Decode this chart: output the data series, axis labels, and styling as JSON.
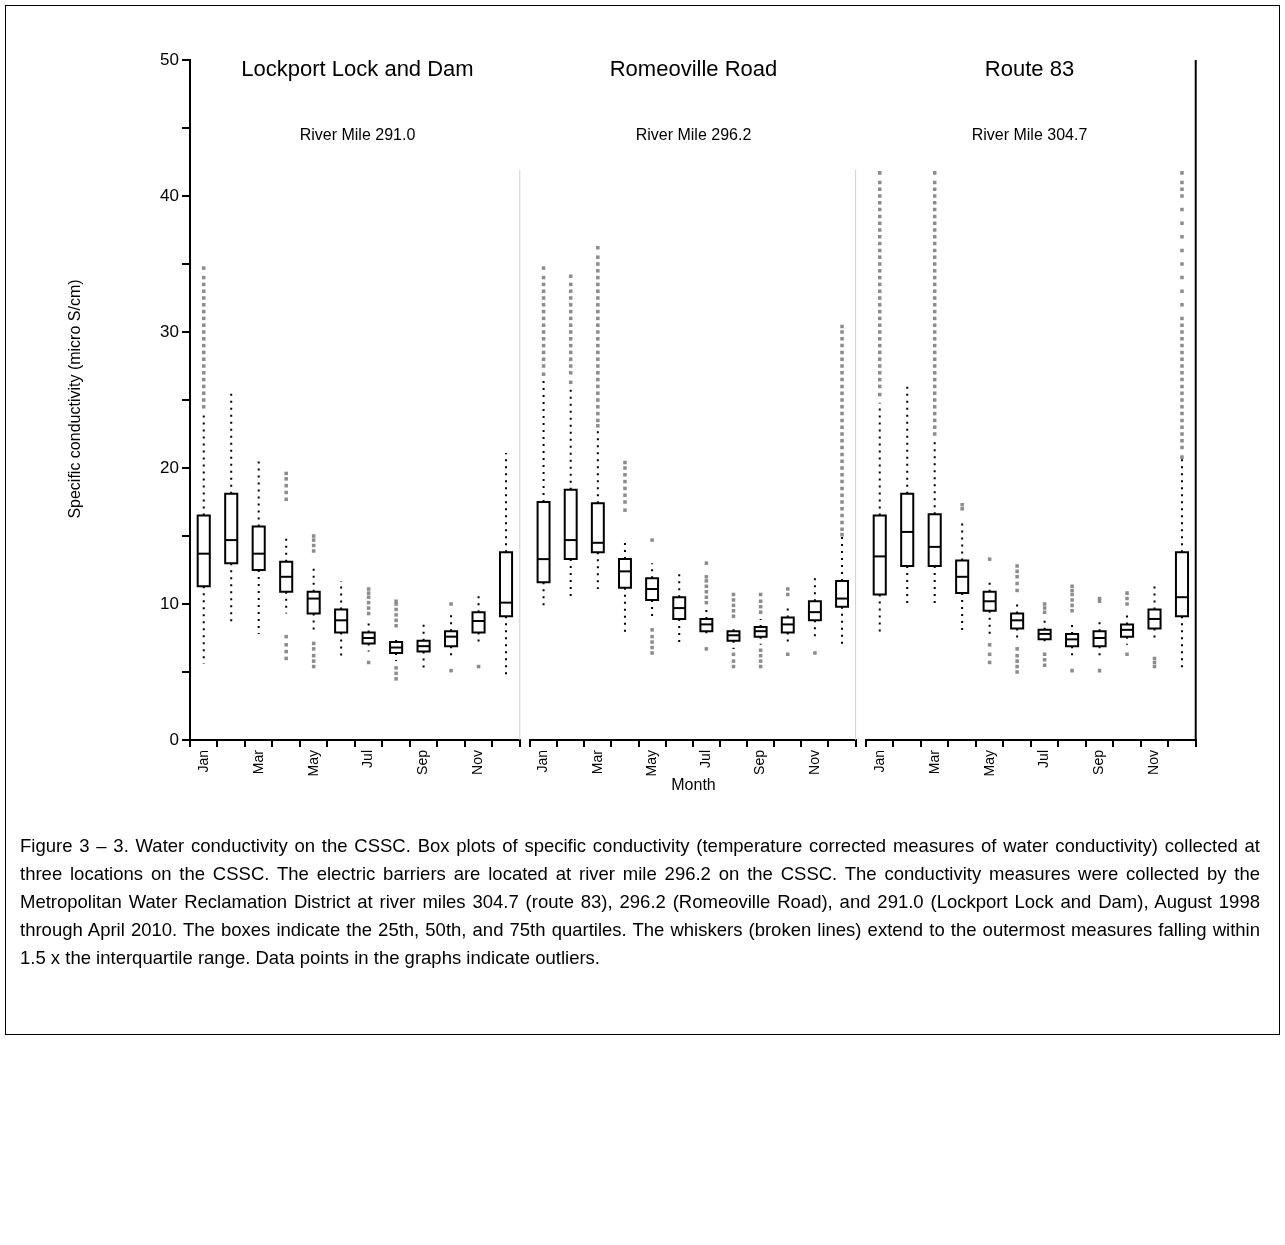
{
  "chart_data": [
    {
      "type": "box",
      "title": "Lockport Lock and Dam",
      "subtitle": "River Mile 291.0",
      "ylabel": "Specific conductivity (micro S/cm)",
      "categories": [
        "Jan",
        null,
        "Mar",
        null,
        "May",
        null,
        "Jul",
        null,
        "Sep",
        null,
        "Nov",
        null
      ],
      "ylim": [
        0,
        50
      ],
      "yticks": [
        0,
        {
          "value": 5,
          "label": null
        },
        10,
        {
          "value": 15,
          "label": null
        },
        20,
        {
          "value": 25,
          "label": null
        },
        30,
        {
          "value": 35,
          "label": null
        },
        40,
        {
          "value": 45,
          "label": null
        },
        50
      ],
      "grid": false,
      "legend": false,
      "series": [
        {
          "color": "#000000",
          "boxes": [
            {
              "low": 5.6,
              "q1": 11.3,
              "median": 13.7,
              "q3": 16.5,
              "high": 24.2,
              "outliers": [
                24.5,
                25,
                25.5,
                26,
                26.5,
                27,
                27.5,
                28,
                28.5,
                29,
                29.5,
                30,
                30.5,
                31,
                31.5,
                32,
                32.5,
                33,
                33.5,
                34,
                34.7
              ]
            },
            {
              "low": 8.4,
              "q1": 13.0,
              "median": 14.7,
              "q3": 18.1,
              "high": 25.5
            },
            {
              "low": 7.8,
              "q1": 12.5,
              "median": 13.7,
              "q3": 15.7,
              "high": 20.5
            },
            {
              "low": 9.3,
              "q1": 10.9,
              "median": 12.0,
              "q3": 13.1,
              "high": 14.8,
              "outliers": [
                6.0,
                6.5,
                7.0,
                7.6,
                17.7,
                18.2,
                18.7,
                19.2,
                19.6
              ]
            },
            {
              "low": 7.8,
              "q1": 9.3,
              "median": 10.4,
              "q3": 10.9,
              "high": 12.6,
              "outliers": [
                5.4,
                5.8,
                6.2,
                6.7,
                7.1,
                13.9,
                14.3,
                14.7,
                15.0
              ]
            },
            {
              "low": 5.9,
              "q1": 7.9,
              "median": 8.8,
              "q3": 9.6,
              "high": 11.7
            },
            {
              "low": 6.5,
              "q1": 7.1,
              "median": 7.5,
              "q3": 7.9,
              "high": 8.75,
              "outliers": [
                5.7,
                9.3,
                9.7,
                10.1,
                10.5,
                10.8,
                11.1
              ]
            },
            {
              "low": 5.8,
              "q1": 6.4,
              "median": 6.8,
              "q3": 7.2,
              "high": 7.6,
              "outliers": [
                4.5,
                4.9,
                5.3,
                8.4,
                8.8,
                9.2,
                9.6,
                10.0,
                10.2
              ]
            },
            {
              "low": 5.3,
              "q1": 6.5,
              "median": 6.9,
              "q3": 7.3,
              "high": 8.6
            },
            {
              "low": 6.0,
              "q1": 6.9,
              "median": 7.6,
              "q3": 8.0,
              "high": 9.3,
              "outliers": [
                5.1,
                10.0
              ]
            },
            {
              "low": 7.1,
              "q1": 7.9,
              "median": 8.75,
              "q3": 9.4,
              "high": 10.6,
              "outliers": [
                5.4
              ]
            },
            {
              "low": 4.5,
              "q1": 9.1,
              "median": 10.1,
              "q3": 13.8,
              "high": 21.1
            }
          ]
        }
      ]
    },
    {
      "type": "box",
      "title": "Romeoville Road",
      "subtitle": "River Mile 296.2",
      "xlabel": "Month",
      "tick_labels": "x",
      "categories": [
        "Jan",
        null,
        "Mar",
        null,
        "May",
        null,
        "Jul",
        null,
        "Sep",
        null,
        "Nov",
        null
      ],
      "ylim": [
        0,
        50
      ],
      "grid": false,
      "legend": false,
      "series": [
        {
          "color": "#000000",
          "boxes": [
            {
              "low": 9.7,
              "q1": 11.6,
              "median": 13.3,
              "q3": 17.5,
              "high": 26.6,
              "outliers": [
                26.9,
                27.5,
                28,
                28.5,
                29,
                29.5,
                30,
                30.5,
                31,
                31.5,
                32,
                32.5,
                33,
                33.5,
                34,
                34.7
              ]
            },
            {
              "low": 10.4,
              "q1": 13.3,
              "median": 14.7,
              "q3": 18.4,
              "high": 26.0,
              "outliers": [
                26.3,
                27,
                27.5,
                28,
                28.5,
                29,
                29.5,
                30,
                30.5,
                31,
                31.5,
                32,
                32.5,
                33,
                33.5,
                34.1
              ]
            },
            {
              "low": 11.1,
              "q1": 13.8,
              "median": 14.5,
              "q3": 17.4,
              "high": 22.8,
              "outliers": [
                23.1,
                23.5,
                24,
                24.5,
                25,
                25.5,
                26,
                26.5,
                27,
                27.5,
                28,
                28.5,
                29,
                29.5,
                30,
                30.5,
                31,
                31.5,
                32,
                32.5,
                33,
                33.5,
                34,
                34.5,
                35,
                35.5,
                36.2
              ]
            },
            {
              "low": 7.9,
              "q1": 11.2,
              "median": 12.4,
              "q3": 13.3,
              "high": 14.8,
              "outliers": [
                16.9,
                17.5,
                18,
                18.5,
                19,
                19.5,
                20,
                20.4
              ]
            },
            {
              "low": 8.9,
              "q1": 10.3,
              "median": 11.1,
              "q3": 11.9,
              "high": 13.0,
              "outliers": [
                6.4,
                6.8,
                7.2,
                7.6,
                8.1,
                14.7
              ]
            },
            {
              "low": 6.9,
              "q1": 8.9,
              "median": 9.7,
              "q3": 10.5,
              "high": 12.5
            },
            {
              "low": 7.5,
              "q1": 8.0,
              "median": 8.5,
              "q3": 8.9,
              "high": 9.7,
              "outliers": [
                6.7,
                10.1,
                10.5,
                10.9,
                11.3,
                11.7,
                12.0,
                13.0
              ]
            },
            {
              "low": 6.7,
              "q1": 7.3,
              "median": 7.7,
              "q3": 8.0,
              "high": 8.5,
              "outliers": [
                5.4,
                5.8,
                6.3,
                9.1,
                9.5,
                9.9,
                10.3,
                10.7
              ]
            },
            {
              "low": 7.0,
              "q1": 7.6,
              "median": 8.0,
              "q3": 8.3,
              "high": 8.9,
              "outliers": [
                5.4,
                5.8,
                6.2,
                6.6,
                9.4,
                9.8,
                10.2,
                10.7
              ]
            },
            {
              "low": 7.2,
              "q1": 7.9,
              "median": 8.5,
              "q3": 9.0,
              "high": 10.0,
              "outliers": [
                6.3,
                10.7,
                11.1
              ]
            },
            {
              "low": 7.6,
              "q1": 8.8,
              "median": 9.4,
              "q3": 10.2,
              "high": 12.0,
              "outliers": [
                6.4
              ]
            },
            {
              "low": 6.9,
              "q1": 9.8,
              "median": 10.4,
              "q3": 11.7,
              "high": 15.0,
              "outliers": [
                15.1,
                15.5,
                16,
                16.5,
                17,
                17.5,
                18,
                18.5,
                19,
                19.5,
                20,
                20.5,
                21,
                21.5,
                22,
                22.5,
                23,
                23.5,
                24,
                24.5,
                25,
                25.5,
                26,
                26.5,
                27,
                27.5,
                28,
                28.5,
                29,
                29.5,
                30,
                30.4
              ]
            }
          ]
        }
      ]
    },
    {
      "type": "box",
      "title": "Route 83",
      "subtitle": "River Mile 304.7",
      "tick_labels": "x",
      "categories": [
        "Jan",
        null,
        "Mar",
        null,
        "May",
        null,
        "Jul",
        null,
        "Sep",
        null,
        "Nov",
        null
      ],
      "ylim": [
        0,
        50
      ],
      "grid": false,
      "legend": false,
      "series": [
        {
          "color": "#000000",
          "boxes": [
            {
              "low": 7.8,
              "q1": 10.7,
              "median": 13.5,
              "q3": 16.5,
              "high": 24.8,
              "outliers": [
                25.4,
                26,
                26.5,
                27,
                27.5,
                28,
                28.5,
                29,
                29.5,
                30,
                30.5,
                31,
                31.5,
                32,
                32.5,
                33,
                33.5,
                34,
                34.5,
                35,
                35.5,
                36,
                36.5,
                37,
                37.5,
                38,
                38.5,
                39,
                39.5,
                40,
                40.5,
                41,
                41.7
              ]
            },
            {
              "low": 10.0,
              "q1": 12.8,
              "median": 15.3,
              "q3": 18.1,
              "high": 26.2
            },
            {
              "low": 10.0,
              "q1": 12.8,
              "median": 14.2,
              "q3": 16.6,
              "high": 22.2,
              "outliers": [
                22.5,
                23,
                23.5,
                24,
                24.5,
                25,
                25.5,
                26,
                26.5,
                27,
                27.5,
                28,
                28.5,
                29,
                29.5,
                30,
                30.5,
                31,
                31.5,
                32,
                32.5,
                33,
                33.5,
                34,
                34.5,
                35,
                35.5,
                36,
                36.5,
                37,
                37.5,
                38,
                38.5,
                39,
                39.5,
                40,
                40.5,
                41,
                41.7
              ]
            },
            {
              "low": 7.9,
              "q1": 10.8,
              "median": 12.0,
              "q3": 13.2,
              "high": 16.0,
              "outliers": [
                17.0,
                17.3
              ]
            },
            {
              "low": 7.8,
              "q1": 9.5,
              "median": 10.2,
              "q3": 10.9,
              "high": 11.9,
              "outliers": [
                5.7,
                6.3,
                7.0,
                13.3
              ]
            },
            {
              "low": 7.5,
              "q1": 8.2,
              "median": 8.8,
              "q3": 9.3,
              "high": 10.1,
              "outliers": [
                5.0,
                5.4,
                5.8,
                6.2,
                6.7,
                11.0,
                11.5,
                12.0,
                12.4,
                12.8
              ]
            },
            {
              "low": 6.9,
              "q1": 7.4,
              "median": 7.8,
              "q3": 8.1,
              "high": 8.8,
              "outliers": [
                5.5,
                5.9,
                6.3,
                9.4,
                9.7,
                10.0
              ]
            },
            {
              "low": 6.0,
              "q1": 6.9,
              "median": 7.4,
              "q3": 7.8,
              "high": 8.8,
              "outliers": [
                5.1,
                9.5,
                9.9,
                10.3,
                10.7,
                11.0,
                11.3
              ]
            },
            {
              "low": 6.0,
              "q1": 6.9,
              "median": 7.5,
              "q3": 8.0,
              "high": 8.9,
              "outliers": [
                5.1,
                10.2,
                10.4
              ]
            },
            {
              "low": 7.0,
              "q1": 7.6,
              "median": 8.1,
              "q3": 8.5,
              "high": 9.2,
              "outliers": [
                6.3,
                10.0,
                10.4,
                10.8
              ]
            },
            {
              "low": 7.2,
              "q1": 8.2,
              "median": 8.9,
              "q3": 9.6,
              "high": 11.6,
              "outliers": [
                5.4,
                5.7,
                6.0
              ]
            },
            {
              "low": 5.3,
              "q1": 9.1,
              "median": 10.5,
              "q3": 13.8,
              "high": 20.7,
              "outliers": [
                20.8,
                21.5,
                22,
                22.5,
                23,
                23.5,
                24,
                24.5,
                25,
                25.5,
                26,
                26.5,
                27,
                27.5,
                28,
                28.5,
                29,
                29.5,
                30,
                30.5,
                31,
                32,
                33,
                34,
                35,
                36,
                37,
                38,
                39,
                40,
                40.5,
                41,
                41.7
              ]
            }
          ]
        }
      ]
    },
    {
      "type": "other",
      "annotations": [
        "Figure 3 – 3. Water conductivity on the CSSC. Box plots of specific conductivity (temperature corrected measures of water conductivity) collected at three locations on the CSSC. The electric barriers are located at river mile 296.2 on the CSSC. The conductivity measures were collected by the Metropolitan Water Reclamation District at river miles 304.7 (route 83), 296.2 (Romeoville Road), and 291.0 (Lockport Lock and Dam), August 1998 through April 2010. The boxes indicate the 25th, 50th, and 75th quartiles. The whiskers (broken lines) extend to the outermost measures falling within 1.5 x the interquartile range. Data points in the graphs indicate outliers."
      ]
    }
  ]
}
